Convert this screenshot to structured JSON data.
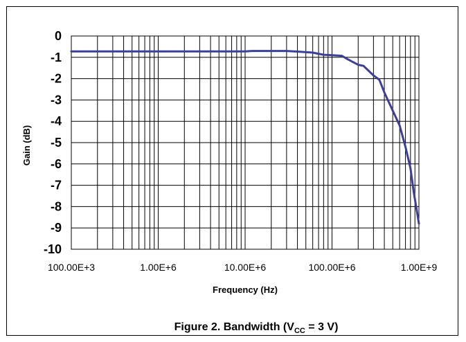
{
  "chart_data": {
    "type": "line",
    "xscale": "log",
    "grid": true,
    "xlabel": "Frequency (Hz)",
    "ylabel": "Gain (dB)",
    "xlim": [
      100000,
      1000000000
    ],
    "ylim": [
      -10,
      0
    ],
    "xticks": [
      100000,
      1000000,
      10000000,
      100000000,
      1000000000
    ],
    "xtick_labels": [
      "100.00E+3",
      "1.00E+6",
      "10.00E+6",
      "100.00E+6",
      "1.00E+9"
    ],
    "yticks": [
      0,
      -1,
      -2,
      -3,
      -4,
      -5,
      -6,
      -7,
      -8,
      -9,
      -10
    ],
    "ytick_labels": [
      "0",
      "-1",
      "-2",
      "-3",
      "-4",
      "-5",
      "-6",
      "-7",
      "-8",
      "-9",
      "-10"
    ],
    "line_color": "#3a3f9a",
    "series": [
      {
        "x": [
          100000,
          1000000,
          10000000,
          12000000,
          20000000,
          30000000,
          40000000,
          60000000,
          80000000,
          100000000,
          130000000,
          150000000,
          200000000,
          230000000,
          300000000,
          350000000,
          400000000,
          500000000,
          600000000,
          700000000,
          800000000,
          870000000,
          930000000,
          1000000000
        ],
        "y": [
          -0.72,
          -0.72,
          -0.72,
          -0.7,
          -0.7,
          -0.7,
          -0.73,
          -0.78,
          -0.88,
          -0.9,
          -0.93,
          -1.08,
          -1.35,
          -1.4,
          -1.85,
          -2.05,
          -2.65,
          -3.5,
          -4.2,
          -5.2,
          -6.2,
          -7.3,
          -8.0,
          -8.8
        ]
      }
    ]
  },
  "caption": {
    "prefix": "Figure 2. Bandwidth (V",
    "subscript": "CC",
    "suffix": " = 3 V)"
  }
}
